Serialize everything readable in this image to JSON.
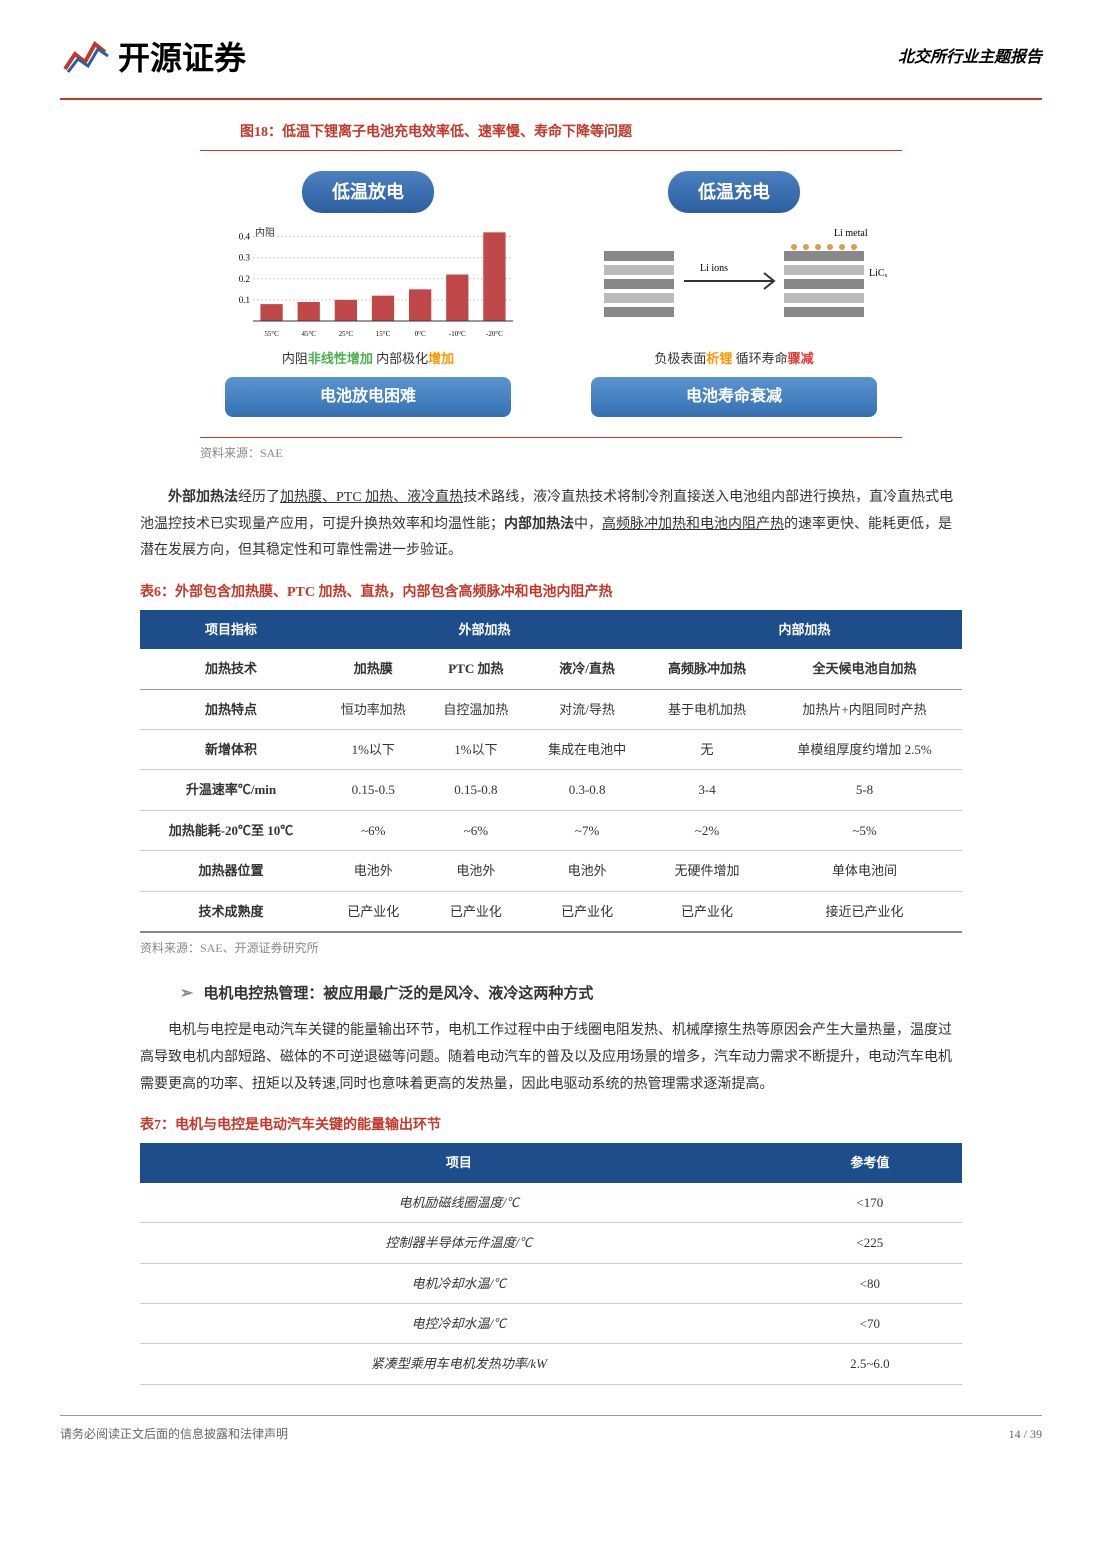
{
  "header": {
    "logo_text": "开源证券",
    "right_text": "北交所行业主题报告"
  },
  "figure18": {
    "title": "图18：低温下锂离子电池充电效率低、速率慢、寿命下降等问题",
    "left": {
      "banner": "低温放电",
      "chart_label": "内阻",
      "y_ticks": [
        "0.1",
        "0.2",
        "0.3",
        "0.4"
      ],
      "x_labels": [
        "55°C",
        "45°C",
        "25°C",
        "15°C",
        "0°C",
        "-10°C",
        "-20°C"
      ],
      "bar_values": [
        0.08,
        0.09,
        0.1,
        0.12,
        0.15,
        0.22,
        0.42
      ],
      "bar_color": "#c04848",
      "grid_color": "#cccccc",
      "mid_text_parts": [
        {
          "text": "内阻",
          "class": ""
        },
        {
          "text": "非线性增加",
          "class": "green"
        },
        {
          "text": " 内部极化",
          "class": ""
        },
        {
          "text": "增加",
          "class": "orange"
        }
      ],
      "bottom": "电池放电困难"
    },
    "right": {
      "banner": "低温充电",
      "diagram_labels": {
        "left": "Li ions",
        "right_top": "Li metal",
        "right_bottom": "LiCₓ"
      },
      "mid_text_parts": [
        {
          "text": "负极表面",
          "class": ""
        },
        {
          "text": "析锂",
          "class": "orange"
        },
        {
          "text": " 循环寿命",
          "class": ""
        },
        {
          "text": "骤减",
          "class": "red"
        }
      ],
      "bottom": "电池寿命衰减"
    },
    "source": "资料来源：SAE"
  },
  "paragraph1": {
    "html": "<b>外部加热法</b>经历了<u>加热膜、PTC 加热、液冷直热</u>技术路线，液冷直热技术将制冷剂直接送入电池组内部进行换热，直冷直热式电池温控技术已实现量产应用，可提升换热效率和均温性能；<b>内部加热法</b>中，<u>高频脉冲加热和电池内阻产热</u>的速率更快、能耗更低，是潜在发展方向，但其稳定性和可靠性需进一步验证。"
  },
  "table6": {
    "title": "表6：外部包含加热膜、PTC 加热、直热，内部包含高频脉冲和电池内阻产热",
    "headers": [
      {
        "label": "项目指标",
        "colspan": 1
      },
      {
        "label": "外部加热",
        "colspan": 3
      },
      {
        "label": "内部加热",
        "colspan": 2
      }
    ],
    "subheaders": [
      "加热技术",
      "加热膜",
      "PTC 加热",
      "液冷/直热",
      "高频脉冲加热",
      "全天候电池自加热"
    ],
    "rows": [
      [
        "加热特点",
        "恒功率加热",
        "自控温加热",
        "对流/导热",
        "基于电机加热",
        "加热片+内阻同时产热"
      ],
      [
        "新增体积",
        "1%以下",
        "1%以下",
        "集成在电池中",
        "无",
        "单模组厚度约增加 2.5%"
      ],
      [
        "升温速率℃/min",
        "0.15-0.5",
        "0.15-0.8",
        "0.3-0.8",
        "3-4",
        "5-8"
      ],
      [
        "加热能耗-20℃至 10℃",
        "~6%",
        "~6%",
        "~7%",
        "~2%",
        "~5%"
      ],
      [
        "加热器位置",
        "电池外",
        "电池外",
        "电池外",
        "无硬件增加",
        "单体电池间"
      ],
      [
        "技术成熟度",
        "已产业化",
        "已产业化",
        "已产业化",
        "已产业化",
        "接近已产业化"
      ]
    ],
    "source": "资料来源：SAE、开源证券研究所"
  },
  "bullet_heading": "电机电控热管理：被应用最广泛的是风冷、液冷这两种方式",
  "paragraph2": "电机与电控是电动汽车关键的能量输出环节，电机工作过程中由于线圈电阻发热、机械摩擦生热等原因会产生大量热量，温度过高导致电机内部短路、磁体的不可逆退磁等问题。随着电动汽车的普及以及应用场景的增多，汽车动力需求不断提升，电动汽车电机需要更高的功率、扭矩以及转速,同时也意味着更高的发热量，因此电驱动系统的热管理需求逐渐提高。",
  "table7": {
    "title": "表7：电机与电控是电动汽车关键的能量输出环节",
    "headers": [
      "项目",
      "参考值"
    ],
    "rows": [
      [
        "电机励磁线圈温度/℃",
        "<170"
      ],
      [
        "控制器半导体元件温度/℃",
        "<225"
      ],
      [
        "电机冷却水温/℃",
        "<80"
      ],
      [
        "电控冷却水温/℃",
        "<70"
      ],
      [
        "紧凑型乘用车电机发热功率/kW",
        "2.5~6.0"
      ]
    ]
  },
  "footer": {
    "left": "请务必阅读正文后面的信息披露和法律声明",
    "right": "14 / 39"
  },
  "colors": {
    "brand_red": "#c0392b",
    "table_header_blue": "#1e4d8c",
    "banner_blue_top": "#4a7fc0",
    "banner_blue_bottom": "#2c5fa0"
  }
}
